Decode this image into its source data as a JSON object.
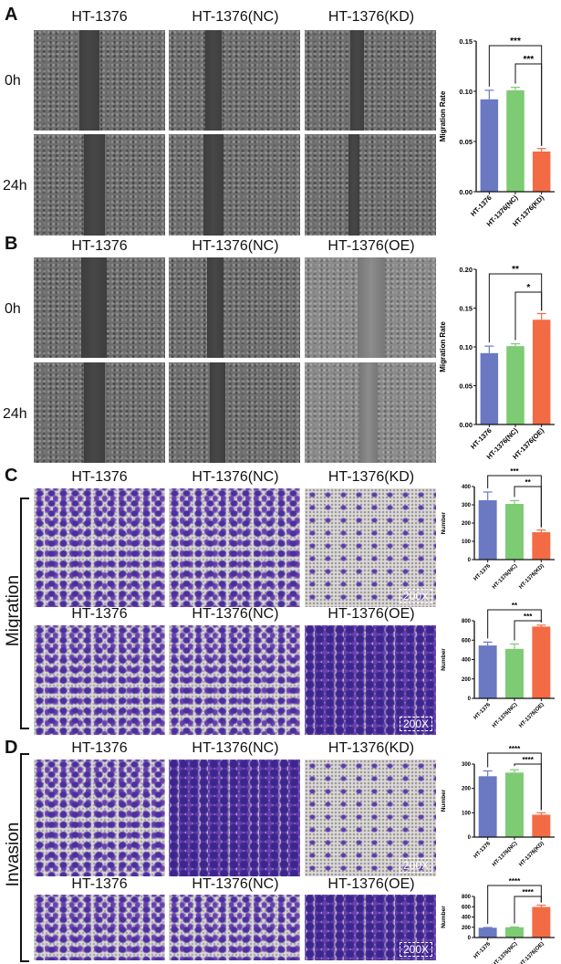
{
  "panels": {
    "A": {
      "label": "A",
      "cols": [
        "HT-1376",
        "HT-1376(NC)",
        "HT-1376(KD)"
      ],
      "rows": [
        "0h",
        "24h"
      ]
    },
    "B": {
      "label": "B",
      "cols": [
        "HT-1376",
        "HT-1376(NC)",
        "HT-1376(OE)"
      ],
      "rows": [
        "0h",
        "24h"
      ]
    },
    "C": {
      "label": "C",
      "side": "Migration",
      "cols1": [
        "HT-1376",
        "HT-1376(NC)",
        "HT-1376(KD)"
      ],
      "cols2": [
        "HT-1376",
        "HT-1376(NC)",
        "HT-1376(OE)"
      ],
      "scale": "200X"
    },
    "D": {
      "label": "D",
      "side": "Invasion",
      "cols1": [
        "HT-1376",
        "HT-1376(NC)",
        "HT-1376(KD)"
      ],
      "cols2": [
        "HT-1376",
        "HT-1376(NC)",
        "HT-1376(OE)"
      ],
      "scale": "200X"
    }
  },
  "colors": {
    "parental": "#6b78c2",
    "nc": "#7dcb73",
    "mod": "#f26b45"
  },
  "chart_data": [
    {
      "type": "bar",
      "ylabel": "Migration Rate",
      "categories": [
        "HT-1376",
        "HT-1376(NC)",
        "HT-1376(KD)"
      ],
      "values": [
        0.092,
        0.101,
        0.04
      ],
      "errors": [
        0.009,
        0.003,
        0.003
      ],
      "ylim": [
        0,
        0.15
      ],
      "ticks": [
        "0.00",
        "0.05",
        "0.10",
        "0.15"
      ],
      "sig": [
        {
          "from": 0,
          "to": 2,
          "label": "***"
        },
        {
          "from": 1,
          "to": 2,
          "label": "***"
        }
      ]
    },
    {
      "type": "bar",
      "ylabel": "Migration Rate",
      "categories": [
        "HT-1376",
        "HT-1376(NC)",
        "HT-1376(OE)"
      ],
      "values": [
        0.092,
        0.101,
        0.135
      ],
      "errors": [
        0.009,
        0.003,
        0.008
      ],
      "ylim": [
        0,
        0.2
      ],
      "ticks": [
        "0.00",
        "0.05",
        "0.10",
        "0.15",
        "0.20"
      ],
      "sig": [
        {
          "from": 0,
          "to": 2,
          "label": "**"
        },
        {
          "from": 1,
          "to": 2,
          "label": "*"
        }
      ]
    },
    {
      "type": "bar",
      "ylabel": "Number",
      "categories": [
        "HT-1376",
        "HT-1376(NC)",
        "HT-1376(KD)"
      ],
      "values": [
        325,
        305,
        150
      ],
      "errors": [
        45,
        18,
        12
      ],
      "ylim": [
        0,
        400
      ],
      "ticks": [
        "0",
        "100",
        "200",
        "300",
        "400"
      ],
      "sig": [
        {
          "from": 0,
          "to": 2,
          "label": "***"
        },
        {
          "from": 1,
          "to": 2,
          "label": "**"
        }
      ]
    },
    {
      "type": "bar",
      "ylabel": "Number",
      "categories": [
        "HT-1376",
        "HT-1376(NC)",
        "HT-1376(OE)"
      ],
      "values": [
        545,
        510,
        740
      ],
      "errors": [
        35,
        50,
        15
      ],
      "ylim": [
        0,
        800
      ],
      "ticks": [
        "0",
        "200",
        "400",
        "600",
        "800"
      ],
      "sig": [
        {
          "from": 0,
          "to": 2,
          "label": "**"
        },
        {
          "from": 1,
          "to": 2,
          "label": "***"
        }
      ]
    },
    {
      "type": "bar",
      "ylabel": "Number",
      "categories": [
        "HT-1376",
        "HT-1376(NC)",
        "HT-1376(KD)"
      ],
      "values": [
        250,
        265,
        92
      ],
      "errors": [
        22,
        12,
        8
      ],
      "ylim": [
        0,
        300
      ],
      "ticks": [
        "0",
        "100",
        "200",
        "300"
      ],
      "sig": [
        {
          "from": 0,
          "to": 2,
          "label": "****"
        },
        {
          "from": 1,
          "to": 2,
          "label": "****"
        }
      ]
    },
    {
      "type": "bar",
      "ylabel": "Number",
      "categories": [
        "HT-1376",
        "HT-1376(NC)",
        "HT-1376(OE)"
      ],
      "values": [
        190,
        200,
        595
      ],
      "errors": [
        5,
        5,
        35
      ],
      "ylim": [
        0,
        800
      ],
      "ticks": [
        "0",
        "200",
        "400",
        "600",
        "800"
      ],
      "sig": [
        {
          "from": 0,
          "to": 2,
          "label": "****"
        },
        {
          "from": 1,
          "to": 2,
          "label": "****"
        }
      ]
    }
  ]
}
